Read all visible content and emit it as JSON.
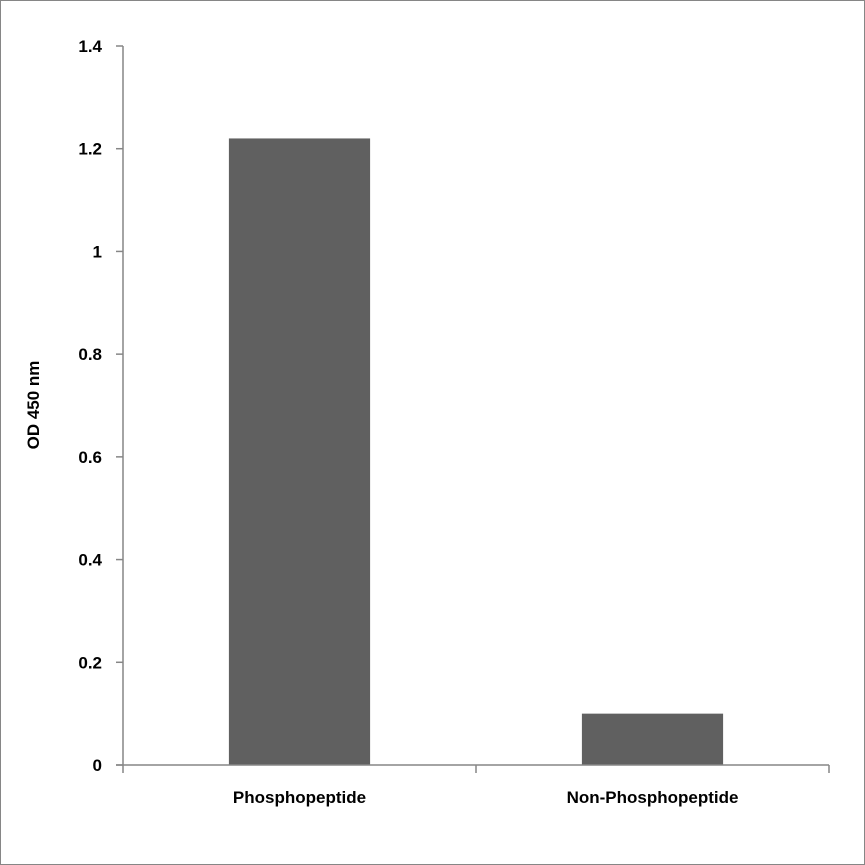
{
  "chart_data": {
    "type": "bar",
    "title": "",
    "xlabel": "",
    "ylabel": "OD 450 nm",
    "categories": [
      "Phosphopeptide",
      "Non-Phosphopeptide"
    ],
    "values": [
      1.22,
      0.1
    ],
    "ylim": [
      0,
      1.4
    ],
    "yticks": [
      "0",
      "0.2",
      "0.4",
      "0.6",
      "0.8",
      "1",
      "1.2",
      "1.4"
    ],
    "grid": false,
    "legend": "none",
    "bar_color": "#606060",
    "axis_color": "#868686"
  }
}
